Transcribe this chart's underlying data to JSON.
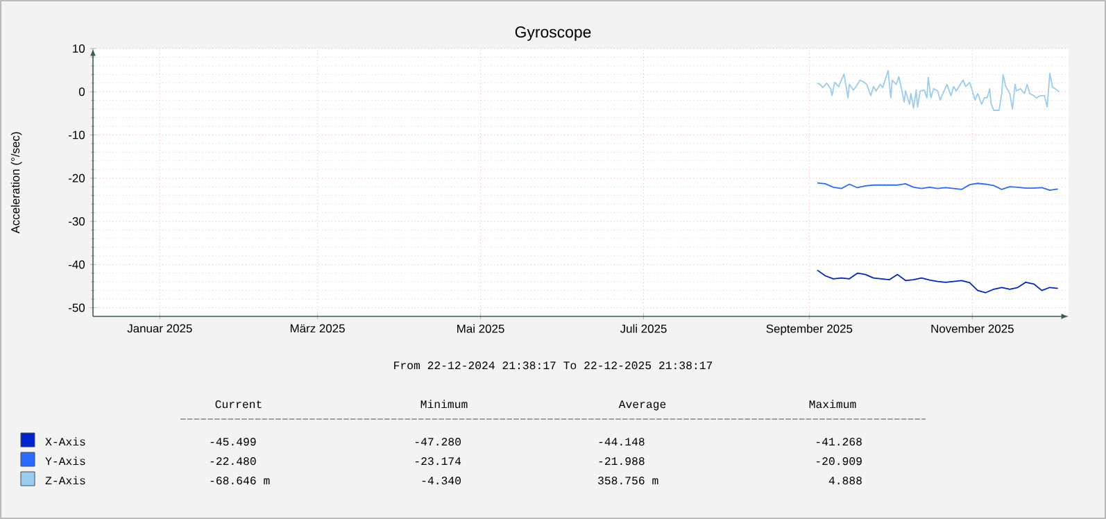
{
  "chart_data": {
    "type": "line",
    "title": "Gyroscope",
    "ylabel": "Acceleration (°/sec)",
    "xlim": [
      "2024-12-22",
      "2025-12-22"
    ],
    "ylim": [
      -52,
      10
    ],
    "xticks": [
      {
        "value": "2025-01-16",
        "label": "Januar 2025"
      },
      {
        "value": "2025-03-16",
        "label": "März 2025"
      },
      {
        "value": "2025-05-16",
        "label": "Mai 2025"
      },
      {
        "value": "2025-07-16",
        "label": "Juli 2025"
      },
      {
        "value": "2025-09-16",
        "label": "September 2025"
      },
      {
        "value": "2025-11-16",
        "label": "November 2025"
      }
    ],
    "yticks": [
      -50,
      -40,
      -30,
      -20,
      -10,
      0,
      10
    ],
    "grid": true,
    "legend": "bottom",
    "series": [
      {
        "name": "X-Axis",
        "color": "#0022cc",
        "x": [
          "2025-09-19",
          "2025-09-22",
          "2025-09-25",
          "2025-09-28",
          "2025-10-01",
          "2025-10-04",
          "2025-10-07",
          "2025-10-10",
          "2025-10-13",
          "2025-10-16",
          "2025-10-19",
          "2025-10-22",
          "2025-10-25",
          "2025-10-28",
          "2025-10-31",
          "2025-11-03",
          "2025-11-06",
          "2025-11-09",
          "2025-11-12",
          "2025-11-15",
          "2025-11-18",
          "2025-11-21",
          "2025-11-24",
          "2025-11-27",
          "2025-11-30",
          "2025-12-03",
          "2025-12-06",
          "2025-12-09",
          "2025-12-12",
          "2025-12-15",
          "2025-12-18"
        ],
        "values": [
          -41.3,
          -42.6,
          -43.3,
          -43.1,
          -43.3,
          -42.0,
          -42.3,
          -43.1,
          -43.3,
          -43.5,
          -42.3,
          -43.7,
          -43.5,
          -43.1,
          -43.6,
          -43.9,
          -44.1,
          -43.9,
          -43.7,
          -44.2,
          -46.0,
          -46.5,
          -45.7,
          -45.3,
          -45.7,
          -45.3,
          -44.1,
          -44.5,
          -46.0,
          -45.3,
          -45.5
        ]
      },
      {
        "name": "Y-Axis",
        "color": "#2a6aff",
        "x": [
          "2025-09-19",
          "2025-09-22",
          "2025-09-25",
          "2025-09-28",
          "2025-10-01",
          "2025-10-04",
          "2025-10-07",
          "2025-10-10",
          "2025-10-13",
          "2025-10-16",
          "2025-10-19",
          "2025-10-22",
          "2025-10-25",
          "2025-10-28",
          "2025-10-31",
          "2025-11-03",
          "2025-11-06",
          "2025-11-09",
          "2025-11-12",
          "2025-11-15",
          "2025-11-18",
          "2025-11-21",
          "2025-11-24",
          "2025-11-27",
          "2025-11-30",
          "2025-12-03",
          "2025-12-06",
          "2025-12-09",
          "2025-12-12",
          "2025-12-15",
          "2025-12-18"
        ],
        "values": [
          -21.1,
          -21.3,
          -22.1,
          -22.4,
          -21.4,
          -22.2,
          -21.8,
          -21.6,
          -21.6,
          -21.6,
          -21.6,
          -21.3,
          -22.1,
          -22.4,
          -22.1,
          -22.4,
          -22.2,
          -22.4,
          -22.6,
          -21.5,
          -21.2,
          -21.4,
          -21.7,
          -22.6,
          -22.0,
          -22.1,
          -22.3,
          -22.3,
          -22.2,
          -22.8,
          -22.5
        ]
      },
      {
        "name": "Z-Axis",
        "color": "#99ccee",
        "x": [
          "2025-09-19T00:00",
          "2025-09-20T00:00",
          "2025-09-21T00:00",
          "2025-09-22T12:00",
          "2025-09-24T00:00",
          "2025-09-24T12:00",
          "2025-09-25T12:00",
          "2025-09-27T00:00",
          "2025-09-28T00:00",
          "2025-09-29T00:00",
          "2025-09-29T12:00",
          "2025-09-30T12:00",
          "2025-10-01T00:00",
          "2025-10-02T12:00",
          "2025-10-03T12:00",
          "2025-10-05T00:00",
          "2025-10-06T12:00",
          "2025-10-07T12:00",
          "2025-10-09T00:00",
          "2025-10-10T00:00",
          "2025-10-11T00:00",
          "2025-10-12T12:00",
          "2025-10-13T12:00",
          "2025-10-15T12:00",
          "2025-10-16T12:00",
          "2025-10-17T00:00",
          "2025-10-18T12:00",
          "2025-10-19T12:00",
          "2025-10-20T12:00",
          "2025-10-21T12:00",
          "2025-10-22T00:00",
          "2025-10-23T12:00",
          "2025-10-24T00:00",
          "2025-10-25T00:00",
          "2025-10-26T00:00",
          "2025-10-26T12:00",
          "2025-10-27T12:00",
          "2025-10-29T00:00",
          "2025-10-30T00:00",
          "2025-10-30T12:00",
          "2025-10-31T12:00",
          "2025-11-01T12:00",
          "2025-11-03T00:00",
          "2025-11-04T00:00",
          "2025-11-05T00:00",
          "2025-11-06T12:00",
          "2025-11-08T00:00",
          "2025-11-09T00:00",
          "2025-11-10T00:00",
          "2025-11-11T12:00",
          "2025-11-12T12:00",
          "2025-11-13T12:00",
          "2025-11-15T00:00",
          "2025-11-16T00:00",
          "2025-11-17T00:00",
          "2025-11-18T00:00",
          "2025-11-19T12:00",
          "2025-11-20T12:00",
          "2025-11-21T12:00",
          "2025-11-22T12:00",
          "2025-11-23T00:00",
          "2025-11-24T00:00",
          "2025-11-26T00:00",
          "2025-11-27T00:00",
          "2025-11-27T12:00",
          "2025-11-28T12:00",
          "2025-11-30T00:00",
          "2025-12-01T00:00",
          "2025-12-02T00:00",
          "2025-12-02T12:00",
          "2025-12-04T00:00",
          "2025-12-05T12:00",
          "2025-12-06T12:00",
          "2025-12-07T12:00",
          "2025-12-09T00:00",
          "2025-12-10T00:00",
          "2025-12-11T12:00",
          "2025-12-13T00:00",
          "2025-12-14T00:00",
          "2025-12-15T00:00",
          "2025-12-16T00:00",
          "2025-12-17T00:00",
          "2025-12-18T12:00"
        ],
        "values": [
          2.0,
          1.7,
          1.0,
          2.0,
          0.7,
          -0.9,
          2.2,
          1.2,
          2.7,
          4.1,
          2.2,
          -1.4,
          1.7,
          0.4,
          1.2,
          2.7,
          2.2,
          1.7,
          -0.9,
          1.2,
          0.2,
          1.7,
          1.0,
          4.9,
          -1.4,
          2.7,
          1.7,
          3.5,
          0.7,
          -2.4,
          0.2,
          -2.9,
          -0.4,
          -3.8,
          0.4,
          -3.5,
          0.2,
          0.4,
          -1.4,
          3.3,
          -1.4,
          0.7,
          0.2,
          -1.9,
          -0.4,
          1.7,
          -0.9,
          1.2,
          0.2,
          1.7,
          2.7,
          1.2,
          2.2,
          0.2,
          -1.9,
          -0.4,
          -2.9,
          -1.4,
          -1.4,
          0.7,
          -2.7,
          -4.3,
          -4.3,
          -0.4,
          4.0,
          1.2,
          -0.4,
          -4.0,
          1.7,
          0.2,
          0.7,
          -0.4,
          1.7,
          -0.4,
          -0.9,
          -1.4,
          -0.9,
          -0.9,
          -3.5,
          4.3,
          1.0,
          0.7,
          0.0
        ]
      }
    ],
    "annotations": [
      "From 22-12-2024 21:38:17 To 22-12-2025 21:38:17",
      "Current",
      "Minimum",
      "Average",
      "Maximum",
      "-45.499",
      "-47.280",
      "-44.148",
      "-41.268",
      "-22.480",
      "-23.174",
      "-21.988",
      "-20.909",
      "-68.646 m",
      "-4.340",
      "358.756 m",
      "4.888"
    ]
  }
}
